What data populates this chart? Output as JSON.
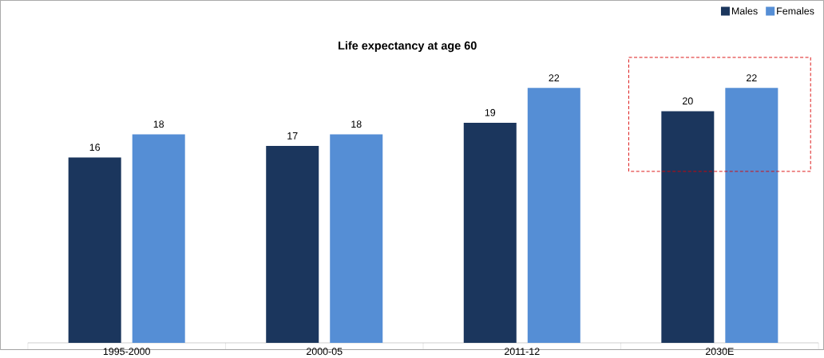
{
  "chart_data": {
    "type": "bar",
    "title": "Life expectancy at age 60",
    "categories": [
      "1995-2000",
      "2000-05",
      "2011-12",
      "2030E"
    ],
    "series": [
      {
        "name": "Males",
        "color": "#1b365d",
        "values": [
          16,
          17,
          19,
          20
        ]
      },
      {
        "name": "Females",
        "color": "#558ed5",
        "values": [
          18,
          18,
          22,
          22
        ]
      }
    ],
    "data_labels": true,
    "legend": "top right"
  }
}
